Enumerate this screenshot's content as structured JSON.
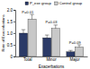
{
  "chart_data": {
    "type": "bar",
    "x_label": "Exacerbations",
    "y_label": "Rate of Exacerbations",
    "categories": [
      "Total",
      "Minor",
      "Major"
    ],
    "series": [
      {
        "name": "P_exe group",
        "color": "#2b3a67",
        "values": [
          1.0,
          0.8,
          0.2
        ],
        "errors": [
          0.15,
          0.12,
          0.06
        ]
      },
      {
        "name": "Control group",
        "color": "#c8c8c8",
        "values": [
          1.6,
          1.2,
          0.4
        ],
        "errors": [
          0.2,
          0.15,
          0.1
        ]
      }
    ],
    "annotations": [
      "P=0.01",
      "P=0.03",
      "P=0.09"
    ],
    "ylim": [
      0,
      2
    ],
    "yticks": [
      0,
      0.5,
      {
        "value": 1,
        "label": "1.0"
      },
      1.5,
      {
        "value": 2,
        "label": "2.0"
      }
    ],
    "legend": "top",
    "grid": false
  }
}
